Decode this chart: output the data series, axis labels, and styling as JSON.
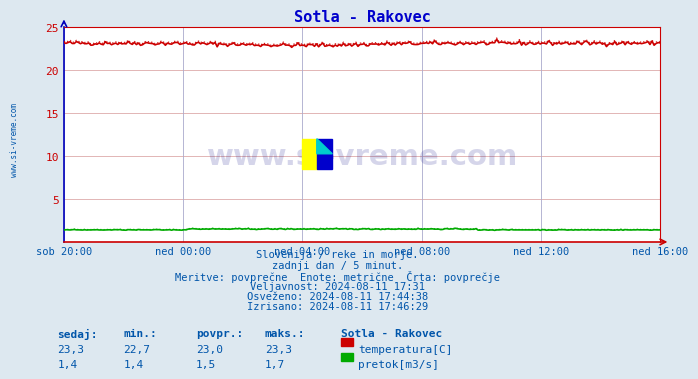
{
  "title": "Sotla - Rakovec",
  "title_color": "#0000cc",
  "bg_color": "#dde8f0",
  "plot_bg_color": "#ffffff",
  "grid_color": "#cc99aa",
  "grid_color_v": "#aaaacc",
  "x_tick_labels": [
    "sob 20:00",
    "ned 00:00",
    "ned 04:00",
    "ned 08:00",
    "ned 12:00",
    "ned 16:00"
  ],
  "x_tick_positions": [
    0,
    48,
    96,
    144,
    192,
    240
  ],
  "n_points": 289,
  "temp_base": 23.0,
  "temp_color": "#cc0000",
  "flow_color": "#00aa00",
  "axis_color": "#cc0000",
  "axis_color_left": "#0000bb",
  "ylim": [
    0,
    25
  ],
  "yticks": [
    5,
    10,
    15,
    20,
    25
  ],
  "watermark_text": "www.si-vreme.com",
  "watermark_color": "#1a1a8c",
  "watermark_alpha": 0.18,
  "info_lines": [
    "Slovenija / reke in morje.",
    "zadnji dan / 5 minut.",
    "Meritve: povprečne  Enote: metrične  Črta: povprečje",
    "Veljavnost: 2024-08-11 17:31",
    "Osveženo: 2024-08-11 17:44:38",
    "Izrisano: 2024-08-11 17:46:29"
  ],
  "table_headers": [
    "sedaj:",
    "min.:",
    "povpr.:",
    "maks.:"
  ],
  "table_row1": [
    "23,3",
    "22,7",
    "23,0",
    "23,3"
  ],
  "table_row2": [
    "1,4",
    "1,4",
    "1,5",
    "1,7"
  ],
  "legend_label1": "temperatura[C]",
  "legend_label2": "pretok[m3/s]",
  "legend_color1": "#cc0000",
  "legend_color2": "#00aa00",
  "station_label": "Sotla - Rakovec",
  "text_color": "#0055aa",
  "side_label": "www.si-vreme.com"
}
